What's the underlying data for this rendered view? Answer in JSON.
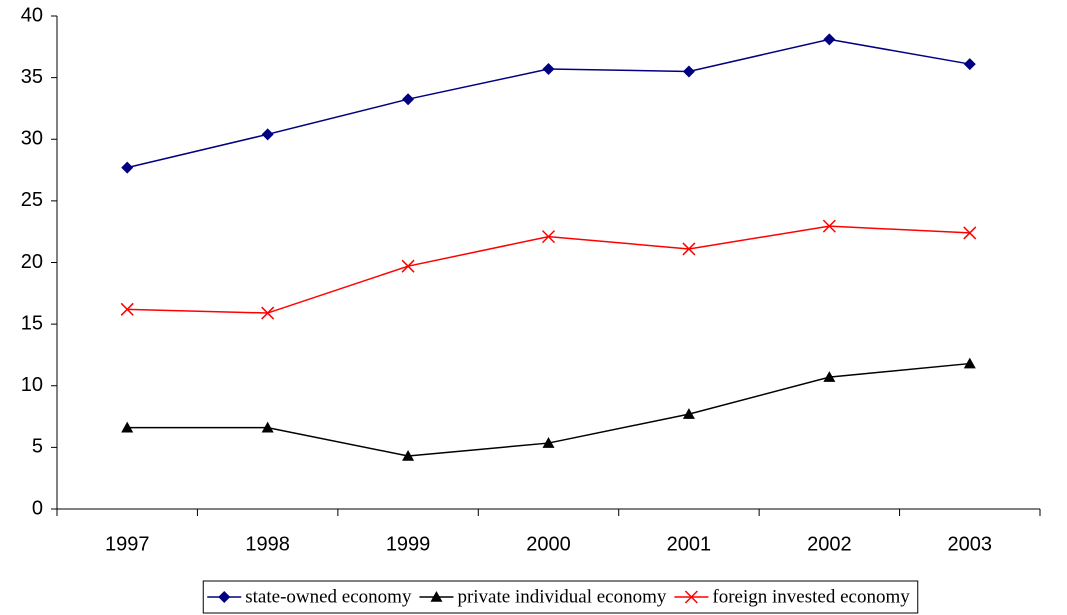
{
  "chart_data": {
    "type": "line",
    "categories": [
      "1997",
      "1998",
      "1999",
      "2000",
      "2001",
      "2002",
      "2003"
    ],
    "series": [
      {
        "name": "state-owned economy",
        "color": "#000080",
        "marker": "diamond",
        "values": [
          27.7,
          30.4,
          33.25,
          35.7,
          35.5,
          38.1,
          36.1
        ]
      },
      {
        "name": "private individual economy",
        "color": "#000000",
        "marker": "triangle",
        "values": [
          6.6,
          6.6,
          4.3,
          5.35,
          7.7,
          10.7,
          11.8
        ]
      },
      {
        "name": "foreign invested economy",
        "color": "#ff0000",
        "marker": "x",
        "values": [
          16.2,
          15.9,
          19.7,
          22.1,
          21.1,
          22.95,
          22.4
        ]
      }
    ],
    "ylim": [
      0,
      40
    ],
    "yticks": [
      0,
      5,
      10,
      15,
      20,
      25,
      30,
      35,
      40
    ],
    "grid": false,
    "legend": "bottom"
  }
}
